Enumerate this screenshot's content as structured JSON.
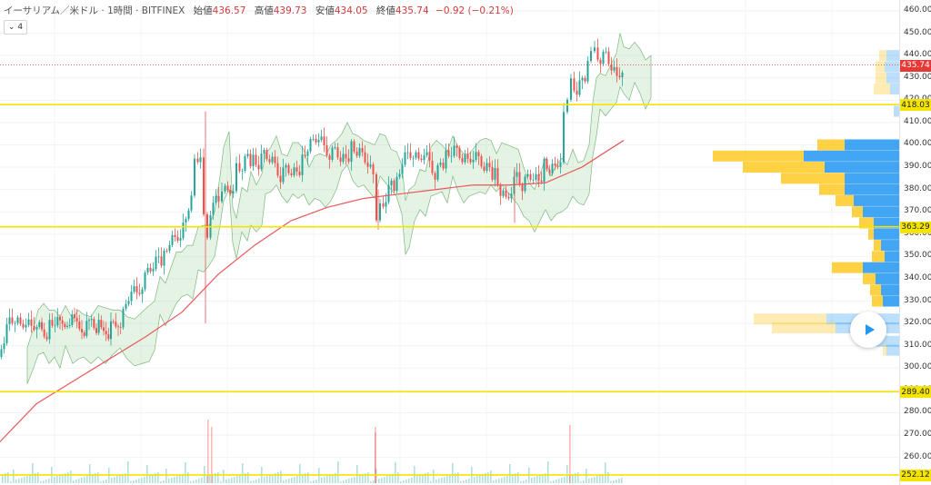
{
  "header": {
    "symbol": "イーサリアム／米ドル · 1時間 · BITFINEX",
    "open_label": "始値",
    "open_value": "436.57",
    "high_label": "高値",
    "high_value": "439.73",
    "low_label": "安値",
    "low_value": "434.05",
    "close_label": "終値",
    "close_value": "435.74",
    "change": "−0.92 (−0.21%)"
  },
  "indicator_chip": {
    "chevron": "⌄",
    "count": "4"
  },
  "price_axis": {
    "ticks": [
      "460.00",
      "450.00",
      "440.00",
      "430.00",
      "420.00",
      "410.00",
      "400.00",
      "390.00",
      "380.00",
      "370.00",
      "360.00",
      "350.00",
      "340.00",
      "330.00",
      "320.00",
      "310.00",
      "300.00",
      "290.00",
      "280.00",
      "270.00",
      "260.00"
    ],
    "current_price": "435.74",
    "levels": [
      "418.03",
      "363.29",
      "289.40",
      "252.12"
    ]
  },
  "colors": {
    "up": "#26a69a",
    "down": "#ef5350",
    "level_line": "#f5e400",
    "current_line": "#e53935",
    "ma": "#e8585b",
    "cloud_bull": "#a5d6a7",
    "cloud_bear": "#ef9a9a",
    "vp_up": "#2196f3",
    "vp_down": "#ffc107"
  },
  "icons": {
    "play": "play-icon",
    "chevron": "chevron-down-icon"
  },
  "chart_data": {
    "type": "candlestick",
    "title": "イーサリアム／米ドル · 1時間 · BITFINEX",
    "ylim": [
      250,
      465
    ],
    "close_path": [
      [
        0,
        305
      ],
      [
        6,
        312
      ],
      [
        12,
        320
      ],
      [
        18,
        322
      ],
      [
        24,
        318
      ],
      [
        30,
        322
      ],
      [
        36,
        318
      ],
      [
        42,
        322
      ],
      [
        50,
        315
      ],
      [
        56,
        318
      ],
      [
        62,
        320
      ],
      [
        70,
        318
      ],
      [
        78,
        322
      ],
      [
        86,
        320
      ],
      [
        94,
        318
      ],
      [
        102,
        322
      ],
      [
        110,
        318
      ],
      [
        118,
        316
      ],
      [
        126,
        318
      ],
      [
        134,
        320
      ],
      [
        140,
        326
      ],
      [
        146,
        336
      ],
      [
        152,
        332
      ],
      [
        158,
        338
      ],
      [
        164,
        344
      ],
      [
        170,
        348
      ],
      [
        176,
        350
      ],
      [
        182,
        349
      ],
      [
        188,
        356
      ],
      [
        194,
        356
      ],
      [
        200,
        360
      ],
      [
        206,
        365
      ],
      [
        212,
        380
      ],
      [
        216,
        392
      ],
      [
        222,
        398
      ],
      [
        226,
        368
      ],
      [
        230,
        362
      ],
      [
        236,
        375
      ],
      [
        242,
        372
      ],
      [
        246,
        380
      ],
      [
        252,
        378
      ],
      [
        258,
        382
      ],
      [
        262,
        390
      ],
      [
        268,
        392
      ],
      [
        274,
        396
      ],
      [
        280,
        392
      ],
      [
        286,
        390
      ],
      [
        292,
        395
      ],
      [
        298,
        394
      ],
      [
        304,
        390
      ],
      [
        310,
        386
      ],
      [
        316,
        390
      ],
      [
        322,
        390
      ],
      [
        328,
        388
      ],
      [
        334,
        392
      ],
      [
        340,
        398
      ],
      [
        346,
        400
      ],
      [
        352,
        404
      ],
      [
        358,
        398
      ],
      [
        364,
        396
      ],
      [
        370,
        398
      ],
      [
        376,
        396
      ],
      [
        382,
        394
      ],
      [
        388,
        398
      ],
      [
        394,
        396
      ],
      [
        400,
        394
      ],
      [
        406,
        392
      ],
      [
        412,
        385
      ],
      [
        416,
        368
      ],
      [
        420,
        372
      ],
      [
        426,
        378
      ],
      [
        432,
        384
      ],
      [
        438,
        382
      ],
      [
        444,
        392
      ],
      [
        450,
        394
      ],
      [
        456,
        396
      ],
      [
        462,
        392
      ],
      [
        468,
        398
      ],
      [
        474,
        392
      ],
      [
        480,
        388
      ],
      [
        486,
        392
      ],
      [
        492,
        394
      ],
      [
        498,
        396
      ],
      [
        504,
        396
      ],
      [
        510,
        394
      ],
      [
        516,
        392
      ],
      [
        522,
        396
      ],
      [
        528,
        394
      ],
      [
        534,
        392
      ],
      [
        540,
        390
      ],
      [
        546,
        386
      ],
      [
        552,
        378
      ],
      [
        558,
        374
      ],
      [
        564,
        380
      ],
      [
        570,
        386
      ],
      [
        576,
        382
      ],
      [
        582,
        386
      ],
      [
        588,
        388
      ],
      [
        594,
        384
      ],
      [
        600,
        390
      ],
      [
        606,
        388
      ],
      [
        612,
        388
      ],
      [
        618,
        394
      ],
      [
        622,
        412
      ],
      [
        626,
        422
      ],
      [
        630,
        428
      ],
      [
        636,
        426
      ],
      [
        642,
        430
      ],
      [
        648,
        434
      ],
      [
        652,
        442
      ],
      [
        656,
        440
      ],
      [
        662,
        438
      ],
      [
        668,
        440
      ],
      [
        674,
        436
      ],
      [
        680,
        430
      ],
      [
        686,
        436
      ]
    ],
    "ma_path": [
      [
        0,
        267
      ],
      [
        40,
        284
      ],
      [
        80,
        294
      ],
      [
        120,
        304
      ],
      [
        160,
        314
      ],
      [
        200,
        325
      ],
      [
        240,
        342
      ],
      [
        280,
        355
      ],
      [
        320,
        366
      ],
      [
        360,
        372
      ],
      [
        400,
        376
      ],
      [
        440,
        378
      ],
      [
        480,
        380
      ],
      [
        520,
        382
      ],
      [
        560,
        382
      ],
      [
        600,
        383
      ],
      [
        640,
        390
      ],
      [
        686,
        402
      ]
    ],
    "volume_spikes": [
      [
        228,
        462
      ],
      [
        412,
        470
      ],
      [
        626,
        468
      ],
      [
        232,
        470
      ],
      [
        412,
        476
      ]
    ],
    "volume_profile": [
      {
        "price": 440,
        "up": 14,
        "down": 8
      },
      {
        "price": 435,
        "up": 16,
        "down": 10
      },
      {
        "price": 430,
        "up": 14,
        "down": 12
      },
      {
        "price": 425,
        "up": 10,
        "down": 18
      },
      {
        "price": 415,
        "up": 6,
        "down": 0
      },
      {
        "price": 400,
        "up": 60,
        "down": 30
      },
      {
        "price": 395,
        "up": 105,
        "down": 100
      },
      {
        "price": 390,
        "up": 82,
        "down": 90
      },
      {
        "price": 385,
        "up": 60,
        "down": 70
      },
      {
        "price": 380,
        "up": 60,
        "down": 28
      },
      {
        "price": 375,
        "up": 50,
        "down": 20
      },
      {
        "price": 370,
        "up": 40,
        "down": 12
      },
      {
        "price": 365,
        "up": 28,
        "down": 16
      },
      {
        "price": 360,
        "up": 28,
        "down": 6
      },
      {
        "price": 355,
        "up": 20,
        "down": 8
      },
      {
        "price": 350,
        "up": 16,
        "down": 14
      },
      {
        "price": 345,
        "up": 40,
        "down": 34
      },
      {
        "price": 340,
        "up": 26,
        "down": 14
      },
      {
        "price": 335,
        "up": 20,
        "down": 12
      },
      {
        "price": 330,
        "up": 18,
        "down": 12
      },
      {
        "price": 322,
        "up": 80,
        "down": 80
      },
      {
        "price": 318,
        "up": 70,
        "down": 70
      },
      {
        "price": 312,
        "up": 30,
        "down": 8
      },
      {
        "price": 308,
        "up": 14,
        "down": 4
      }
    ]
  }
}
